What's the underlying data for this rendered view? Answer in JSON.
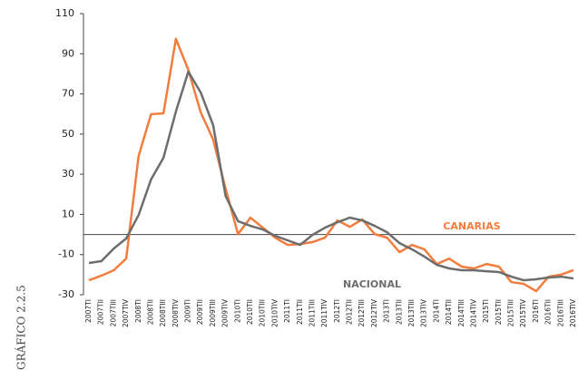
{
  "figure_label": "GRÁFICO 2.2.5",
  "chart_data": {
    "type": "line",
    "categories": [
      "2007TI",
      "2007TII",
      "2007TIII",
      "2007TIV",
      "2008TI",
      "2008TII",
      "2008TIII",
      "2008TIV",
      "2009TI",
      "2009TII",
      "2009TIII",
      "2009TIV",
      "2010TI",
      "2010TII",
      "2010TIII",
      "2010TIV",
      "2011TI",
      "2011TII",
      "2011TIII",
      "2011TIV",
      "2012TI",
      "2012TII",
      "2012TIII",
      "2012TIV",
      "2013TI",
      "2013TII",
      "2013TIII",
      "2013TIV",
      "2014TI",
      "2014TII",
      "2014TIII",
      "2014TIV",
      "2015TI",
      "2015TII",
      "2015TIII",
      "2015TIV",
      "2016TI",
      "2016TII",
      "2016TIII",
      "2016TIV"
    ],
    "series": [
      {
        "name": "CANARIAS",
        "color": "#f47c3c",
        "values": [
          -22.8,
          -20.5,
          -17.8,
          -12,
          39.1,
          59.9,
          60.3,
          97.4,
          82,
          60.8,
          47.3,
          22.8,
          0.2,
          8.4,
          3.4,
          -1.6,
          -5.2,
          -4.7,
          -3.8,
          -1.6,
          7,
          3.8,
          7.5,
          0.2,
          -1.6,
          -8.8,
          -5.2,
          -7.4,
          -14.7,
          -12,
          -16,
          -16.9,
          -14.7,
          -16,
          -23.7,
          -24.6,
          -28.2,
          -21,
          -20,
          -17.8
        ]
      },
      {
        "name": "NACIONAL",
        "color": "#6d6d6d",
        "values": [
          -14.2,
          -13.3,
          -7,
          -2,
          9.7,
          27.4,
          38.2,
          61.2,
          81.1,
          70.7,
          54.4,
          19.2,
          6.6,
          4.3,
          2.5,
          -0.7,
          -2.9,
          -5.2,
          -0.2,
          3.4,
          6.1,
          8.4,
          7,
          4.3,
          1.1,
          -4.3,
          -7.4,
          -11,
          -15.1,
          -16.9,
          -17.8,
          -17.8,
          -18.3,
          -18.7,
          -21,
          -22.8,
          -22.3,
          -21.4,
          -21,
          -21.9
        ]
      }
    ],
    "ylim": [
      -30,
      110
    ],
    "yticks": [
      -30,
      -10,
      10,
      30,
      50,
      70,
      90,
      110
    ]
  }
}
